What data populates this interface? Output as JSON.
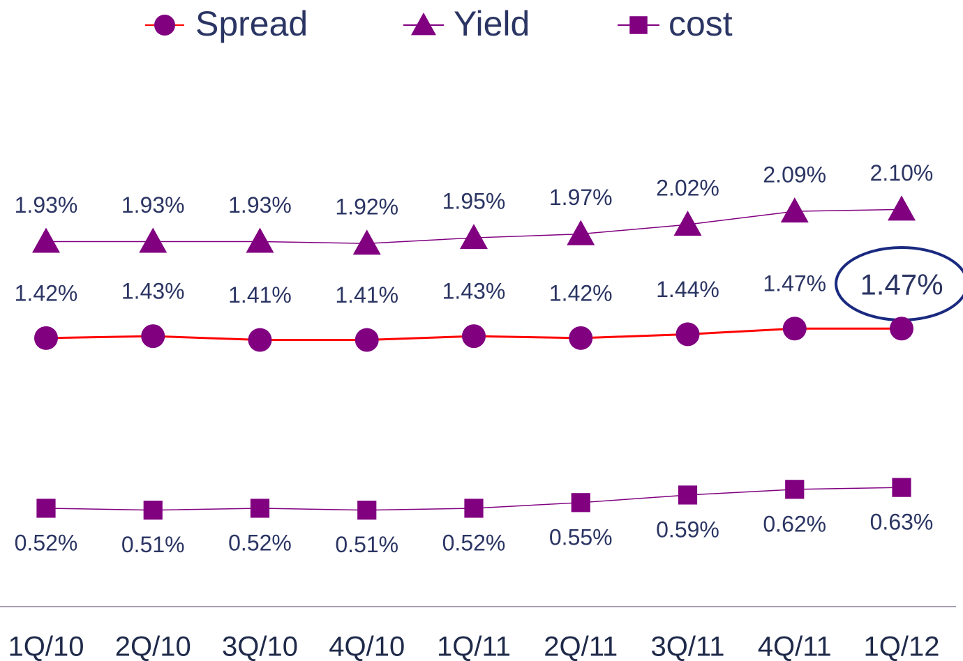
{
  "chart_data": {
    "type": "line",
    "categories": [
      "1Q/10",
      "2Q/10",
      "3Q/10",
      "4Q/10",
      "1Q/11",
      "2Q/11",
      "3Q/11",
      "4Q/11",
      "1Q/12"
    ],
    "series": [
      {
        "name": "Spread",
        "color": "#800080",
        "line_color": "#ff0000",
        "marker": "circle",
        "values": [
          1.42,
          1.43,
          1.41,
          1.41,
          1.43,
          1.42,
          1.44,
          1.47,
          1.47
        ],
        "value_labels": [
          "1.42%",
          "1.43%",
          "1.41%",
          "1.41%",
          "1.43%",
          "1.42%",
          "1.44%",
          "1.47%",
          "1.47%"
        ]
      },
      {
        "name": "Yield",
        "color": "#800080",
        "line_color": "#800080",
        "marker": "triangle",
        "values": [
          1.93,
          1.93,
          1.93,
          1.92,
          1.95,
          1.97,
          2.02,
          2.09,
          2.1
        ],
        "value_labels": [
          "1.93%",
          "1.93%",
          "1.93%",
          "1.92%",
          "1.95%",
          "1.97%",
          "2.02%",
          "2.09%",
          "2.10%"
        ]
      },
      {
        "name": "cost",
        "color": "#800080",
        "line_color": "#800080",
        "marker": "square",
        "values": [
          0.52,
          0.51,
          0.52,
          0.51,
          0.52,
          0.55,
          0.59,
          0.62,
          0.63
        ],
        "value_labels": [
          "0.52%",
          "0.51%",
          "0.52%",
          "0.51%",
          "0.52%",
          "0.55%",
          "0.59%",
          "0.62%",
          "0.63%"
        ]
      }
    ],
    "ylim": [
      0,
      3.2
    ],
    "legend": "top"
  }
}
